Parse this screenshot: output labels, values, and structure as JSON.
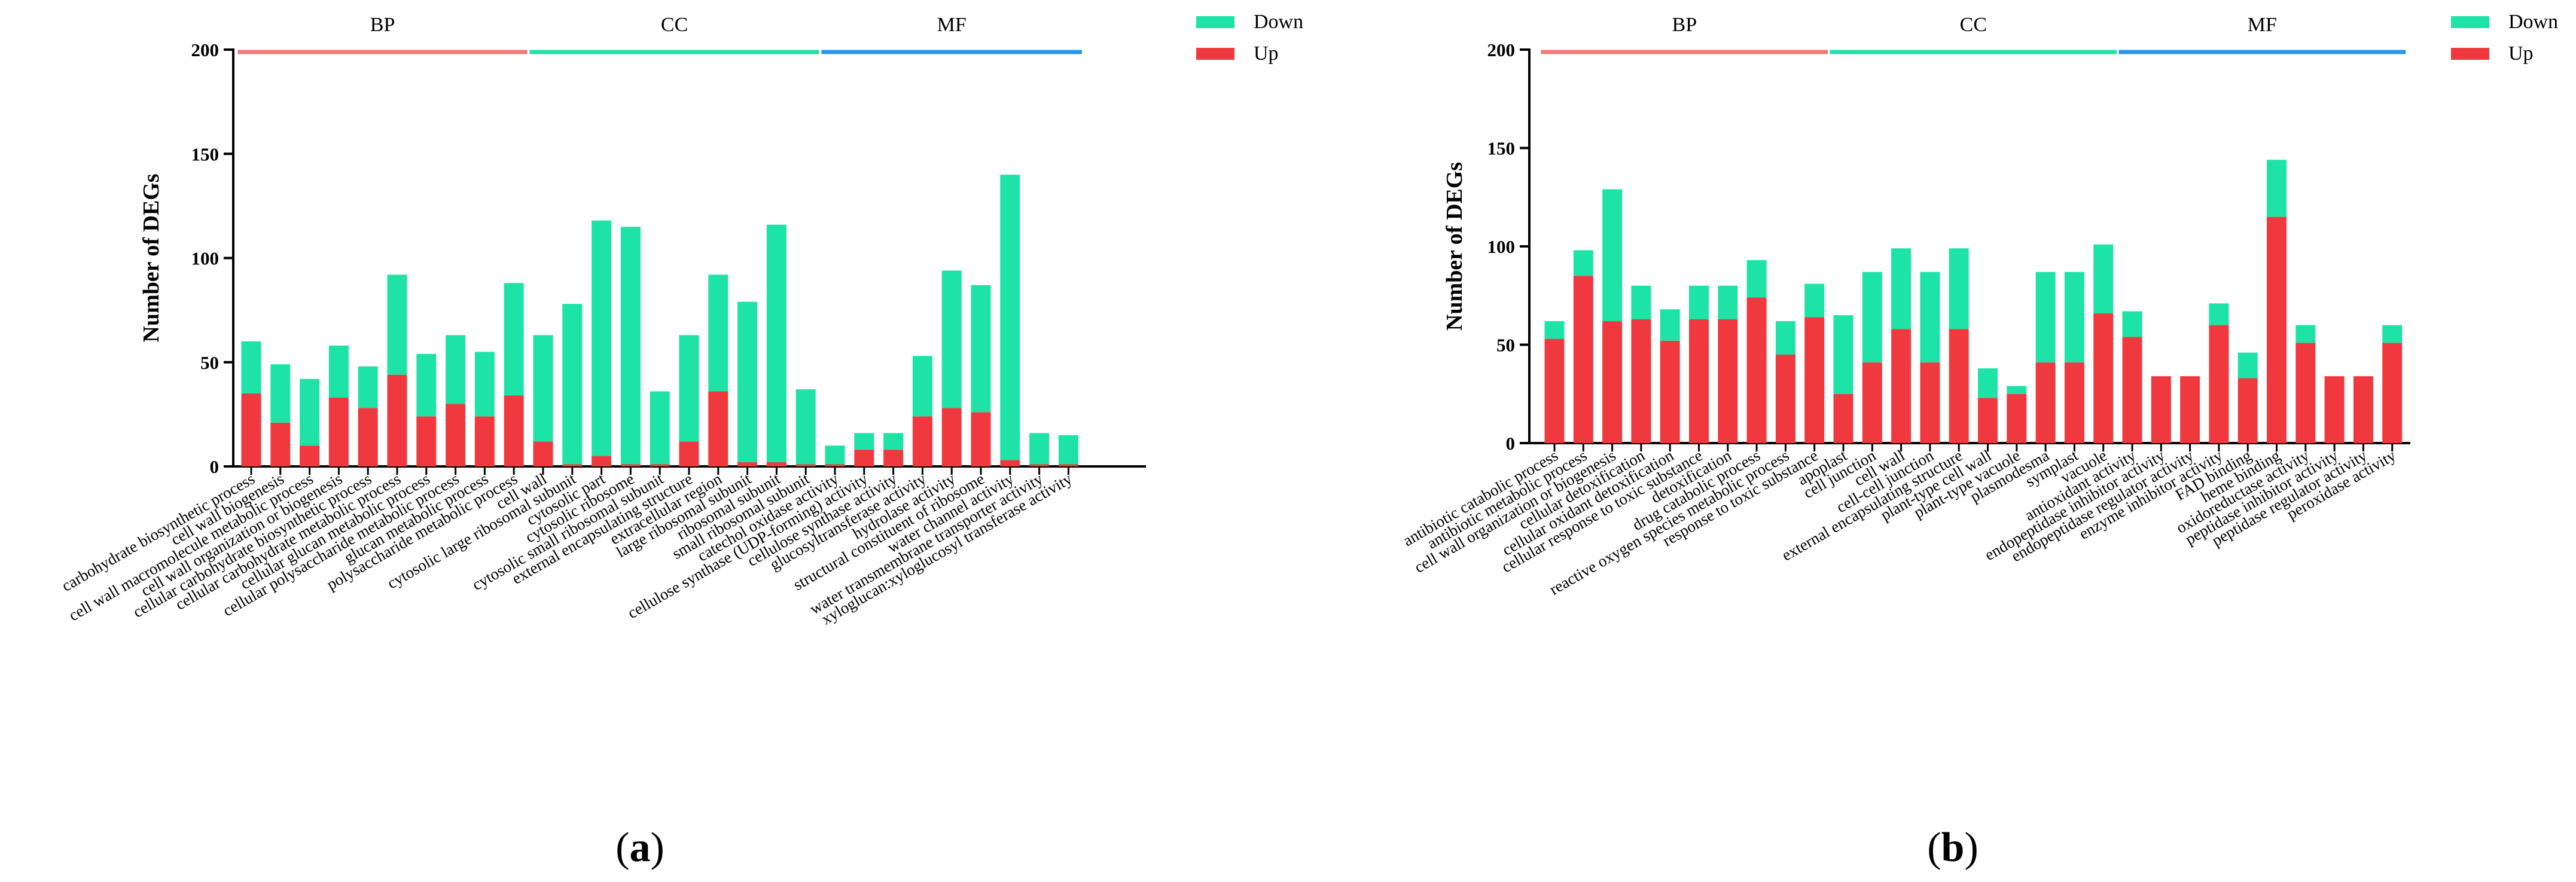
{
  "colors": {
    "up": "#f0393f",
    "down": "#1ee3a6",
    "BP": "#f07a78",
    "CC": "#22e0a8",
    "MF": "#2697e8"
  },
  "legend": {
    "down": "Down",
    "up": "Up"
  },
  "chart_data": [
    {
      "type": "bar",
      "stacked": true,
      "panel_label": "a",
      "ylabel": "Number of DEGs",
      "ylim": [
        0,
        200
      ],
      "yticks": [
        0,
        50,
        100,
        150,
        200
      ],
      "groups": [
        {
          "name": "BP",
          "start": 0,
          "end": 9
        },
        {
          "name": "CC",
          "start": 10,
          "end": 19
        },
        {
          "name": "MF",
          "start": 20,
          "end": 28
        }
      ],
      "categories": [
        "carbohydrate biosynthetic process",
        "cell wall biogenesis",
        "cell wall macromolecule metabolic process",
        "cell wall organization or biogenesis",
        "cellular carbohydrate biosynthetic process",
        "cellular carbohydrate metabolic process",
        "cellular glucan metabolic process",
        "cellular polysaccharide metabolic process",
        "glucan metabolic process",
        "polysaccharide metabolic process",
        "cell wall",
        "cytosolic large ribosomal subunit",
        "cytosolic part",
        "cytosolic ribosome",
        "cytosolic small ribosomal subunit",
        "external encapsulating structure",
        "extracellular region",
        "large ribosomal subunit",
        "ribosomal subunit",
        "small ribosomal subunit",
        "catechol oxidase activity",
        "cellulose synthase (UDP-forming) activity",
        "cellulose synthase activity",
        "glucosyltransferase activity",
        "hydrolase activity",
        "structural constituent of ribosome",
        "water channel activity",
        "water transmembrane transporter activity",
        "xyloglucan:xyloglucosyl transferase activity"
      ],
      "series": [
        {
          "name": "Up",
          "values": [
            35,
            21,
            10,
            33,
            28,
            44,
            24,
            30,
            24,
            34,
            12,
            1,
            5,
            1,
            1,
            12,
            36,
            2,
            2,
            1,
            1,
            8,
            8,
            24,
            28,
            26,
            3,
            1,
            1
          ]
        },
        {
          "name": "Down",
          "values": [
            25,
            28,
            32,
            25,
            20,
            48,
            30,
            33,
            31,
            54,
            51,
            77,
            113,
            114,
            35,
            51,
            56,
            77,
            114,
            36,
            9,
            8,
            8,
            29,
            66,
            61,
            137,
            15,
            14
          ]
        }
      ]
    },
    {
      "type": "bar",
      "stacked": true,
      "panel_label": "b",
      "ylabel": "Number of DEGs",
      "ylim": [
        0,
        200
      ],
      "yticks": [
        0,
        50,
        100,
        150,
        200
      ],
      "groups": [
        {
          "name": "BP",
          "start": 0,
          "end": 9
        },
        {
          "name": "CC",
          "start": 10,
          "end": 19
        },
        {
          "name": "MF",
          "start": 20,
          "end": 29
        }
      ],
      "categories": [
        "antibiotic catabolic process",
        "antibiotic metabolic process",
        "cell wall organization or biogenesis",
        "cellular detoxification",
        "cellular oxidant detoxification",
        "cellular response to toxic substance",
        "detoxification",
        "drug catabolic process",
        "reactive oxygen species metabolic process",
        "response to toxic substance",
        "apoplast",
        "cell junction",
        "cell wall",
        "cell-cell junction",
        "external encapsulating structure",
        "plant-type cell wall",
        "plant-type vacuole",
        "plasmodesma",
        "symplast",
        "vacuole",
        "antioxidant activity",
        "endopeptidase inhibitor activity",
        "endopeptidase regulator activity",
        "enzyme inhibitor activity",
        "FAD binding",
        "heme binding",
        "oxidoreductase activity",
        "peptidase inhibitor activity",
        "peptidase regulator activity",
        "peroxidase activity"
      ],
      "series": [
        {
          "name": "Up",
          "values": [
            53,
            85,
            62,
            63,
            52,
            63,
            63,
            74,
            45,
            64,
            25,
            41,
            58,
            41,
            58,
            23,
            25,
            41,
            41,
            66,
            54,
            34,
            34,
            60,
            33,
            115,
            51,
            34,
            34,
            51
          ]
        },
        {
          "name": "Down",
          "values": [
            9,
            13,
            67,
            17,
            16,
            17,
            17,
            19,
            17,
            17,
            40,
            46,
            41,
            46,
            41,
            15,
            4,
            46,
            46,
            35,
            13,
            0,
            0,
            11,
            13,
            29,
            9,
            0,
            0,
            9
          ]
        }
      ]
    }
  ]
}
